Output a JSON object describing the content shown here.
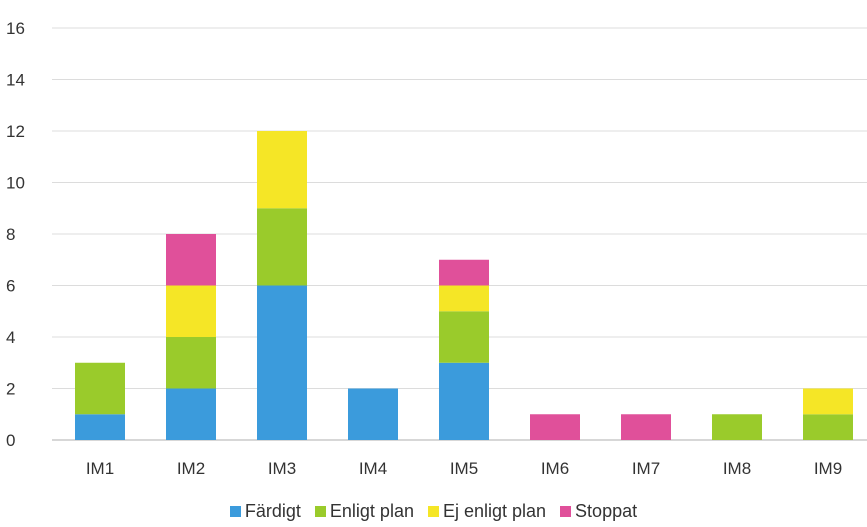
{
  "chart_data": {
    "type": "bar",
    "stacked": true,
    "categories": [
      "IM1",
      "IM2",
      "IM3",
      "IM4",
      "IM5",
      "IM6",
      "IM7",
      "IM8",
      "IM9"
    ],
    "series": [
      {
        "name": "Färdigt",
        "color": "#3b9bdc",
        "values": [
          1,
          2,
          6,
          2,
          3,
          0,
          0,
          0,
          0
        ]
      },
      {
        "name": "Enligt plan",
        "color": "#9acb2b",
        "values": [
          2,
          2,
          3,
          0,
          2,
          0,
          0,
          1,
          1
        ]
      },
      {
        "name": "Ej enligt plan",
        "color": "#f5e626",
        "values": [
          0,
          2,
          3,
          0,
          1,
          0,
          0,
          0,
          1
        ]
      },
      {
        "name": "Stoppat",
        "color": "#e0509a",
        "values": [
          0,
          2,
          0,
          0,
          1,
          1,
          1,
          0,
          0
        ]
      }
    ],
    "ylim": [
      0,
      16
    ],
    "yticks": [
      0,
      2,
      4,
      6,
      8,
      10,
      12,
      14,
      16
    ],
    "grid": true,
    "legend_position": "bottom",
    "title": "",
    "xlabel": "",
    "ylabel": ""
  }
}
